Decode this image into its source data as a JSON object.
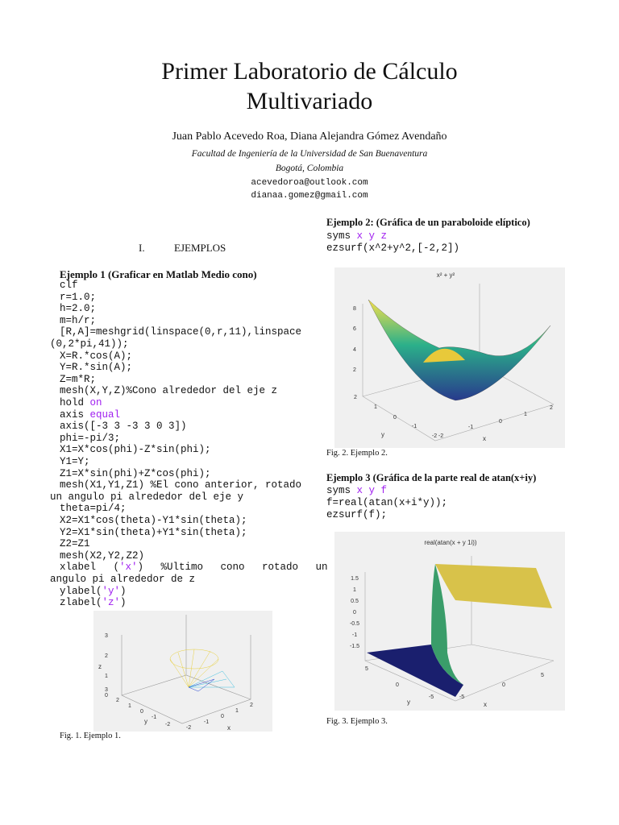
{
  "header": {
    "title": [
      "Primer Laboratorio de Cálculo",
      "Multivariado"
    ],
    "authors": "Juan Pablo Acevedo Roa, Diana Alejandra Gómez Avendaño",
    "affiliation": [
      "Facultad de Ingeniería de la Universidad de San Buenaventura",
      "Bogotá, Colombia"
    ],
    "emails": [
      "acevedoroa@outlook.com",
      "dianaa.gomez@gmail.com"
    ]
  },
  "section": {
    "number": "I.",
    "title": "EJEMPLOS"
  },
  "example1": {
    "heading": "Ejemplo 1 (Graficar en Matlab Medio cono)",
    "code": [
      [
        "clf"
      ],
      [
        "r=1.0;"
      ],
      [
        "h=2.0;"
      ],
      [
        "m=h/r;"
      ],
      [
        "[R,A]=meshgrid(linspace(0,r,11),linspace"
      ],
      [
        "(0,2*pi,41));"
      ],
      [
        "X=R.*cos(A);"
      ],
      [
        "Y=R.*sin(A);"
      ],
      [
        "Z=m*R;"
      ],
      [
        "mesh(X,Y,Z)%Cono alrededor del eje z"
      ],
      [
        "hold ",
        "on"
      ],
      [
        "axis ",
        "equal"
      ],
      [
        "axis([-3 3 -3 3 0 3])"
      ],
      [
        "phi=-pi/3;"
      ],
      [
        "X1=X*cos(phi)-Z*sin(phi);"
      ],
      [
        "Y1=Y;"
      ],
      [
        "Z1=X*sin(phi)+Z*cos(phi);"
      ],
      [
        "mesh(X1,Y1,Z1) %El cono anterior, rotado"
      ],
      [
        "un angulo pi alrededor del eje y"
      ],
      [
        "theta=pi/4;"
      ],
      [
        "X2=X1*cos(theta)-Y1*sin(theta);"
      ],
      [
        "Y2=X1*sin(theta)+Y1*sin(theta);"
      ],
      [
        "Z2=Z1"
      ],
      [
        "mesh(X2,Y2,Z2)"
      ],
      [
        "xlabel (",
        "'x'",
        ") %Ultimo cono rotado un"
      ],
      [
        "angulo pi alrededor de z"
      ],
      [
        "ylabel(",
        "'y'",
        ")"
      ],
      [
        "zlabel(",
        "'z'",
        ")"
      ]
    ],
    "figure": {
      "ticks": [
        "3",
        "2",
        "1",
        "0",
        "3",
        "2",
        "1",
        "0",
        "-1",
        "-2",
        "-2",
        "-1",
        "0",
        "1",
        "2"
      ],
      "axis_labels": [
        "z",
        "y",
        "x"
      ]
    },
    "caption": "Fig. 1. Ejemplo 1."
  },
  "example2": {
    "heading": "Ejemplo 2: (Gráfica de un paraboloide elíptico)",
    "code": [
      [
        "syms ",
        "x y z"
      ],
      [
        "ezsurf(x^2+y^2,[-2,2])"
      ]
    ],
    "figure": {
      "title": "x² + y²",
      "ticks": [
        "8",
        "6",
        "4",
        "2",
        "2",
        "1",
        "0",
        "-1",
        "-2",
        "-2",
        "-1",
        "0",
        "1",
        "2"
      ],
      "axis_labels": [
        "y",
        "x"
      ]
    },
    "caption": "Fig. 2. Ejemplo 2."
  },
  "example3": {
    "heading": "Ejemplo 3 (Gráfica de la parte real de atan(x+iy)",
    "code": [
      [
        "syms ",
        "x y f"
      ],
      [
        "f=real(atan(x+i*y));"
      ],
      [
        "ezsurf(f);"
      ]
    ],
    "figure": {
      "title": "real(atan(x + y 1i))",
      "ticks": [
        "1.5",
        "1",
        "0.5",
        "0",
        "-0.5",
        "-1",
        "-1.5",
        "5",
        "0",
        "-5",
        "-5",
        "0",
        "5"
      ],
      "axis_labels": [
        "y",
        "x"
      ]
    },
    "caption": "Fig. 3. Ejemplo 3."
  }
}
